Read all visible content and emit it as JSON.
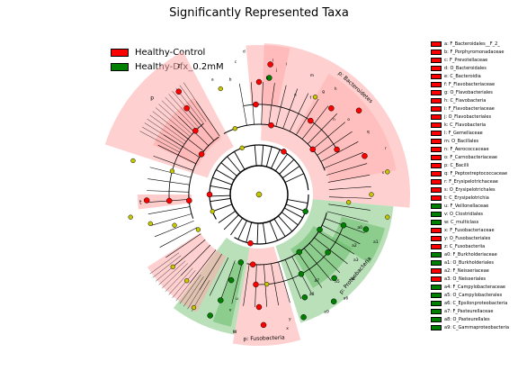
{
  "title": "Significantly Represented Taxa",
  "legend": [
    {
      "label": "Healthy-Control",
      "color": "#ff0000"
    },
    {
      "label": "Healthy-Dfx_0.2mM",
      "color": "#008000"
    }
  ],
  "colors": {
    "control_fill": "#ffaaaa",
    "dfx_fill": "#66bb66",
    "enriched_control_node": "#ff0000",
    "enriched_dfx_node": "#008000",
    "unchanged_node": "#c8c800"
  },
  "taxa": [
    {
      "text": "a: F_Bacteroidales__F_2_",
      "group": "control"
    },
    {
      "text": "b: F_Porphyromonadaceae",
      "group": "control"
    },
    {
      "text": "c: F_Prevotellaceae",
      "group": "control"
    },
    {
      "text": "d: O_Bacteroidales",
      "group": "control"
    },
    {
      "text": "e: C_Bacteroidia",
      "group": "control"
    },
    {
      "text": "f: F_Flavobacteriaceae",
      "group": "control"
    },
    {
      "text": "g: O_Flavobacteriales",
      "group": "control"
    },
    {
      "text": "h: C_Flavobacteria",
      "group": "control"
    },
    {
      "text": "i: F_Flavobacteriaceae",
      "group": "control"
    },
    {
      "text": "j: O_Flavobacteriales",
      "group": "control"
    },
    {
      "text": "k: C_Flavobacteria",
      "group": "control"
    },
    {
      "text": "l: F_Gemellaceae",
      "group": "control"
    },
    {
      "text": "m: O_Bacillales",
      "group": "control"
    },
    {
      "text": "n: F_Aerococcaceae",
      "group": "control"
    },
    {
      "text": "o: F_Carnobacteriaceae",
      "group": "control"
    },
    {
      "text": "p: C_Bacilli",
      "group": "control"
    },
    {
      "text": "q: F_Peptostreptococcaceae",
      "group": "control"
    },
    {
      "text": "r: F_Erysipelotrichaceae",
      "group": "control"
    },
    {
      "text": "s: O_Erysipelotrichales",
      "group": "control"
    },
    {
      "text": "t: C_Erysipelotrichia",
      "group": "control"
    },
    {
      "text": "u: F_Veillonellaceae",
      "group": "dfx"
    },
    {
      "text": "v: O_Clostridiales",
      "group": "dfx"
    },
    {
      "text": "w: C_multiclass",
      "group": "dfx"
    },
    {
      "text": "x: F_Fusobacteriaceae",
      "group": "control"
    },
    {
      "text": "y: O_Fusobacteriales",
      "group": "control"
    },
    {
      "text": "z: C_Fusobacteriia",
      "group": "control"
    },
    {
      "text": "a0: F_Burkholderiaceae",
      "group": "dfx"
    },
    {
      "text": "a1: O_Burkholderiales",
      "group": "dfx"
    },
    {
      "text": "a2: F_Neisseriaceae",
      "group": "control"
    },
    {
      "text": "a3: O_Neisseriales",
      "group": "control"
    },
    {
      "text": "a4: F_Campylobacteraceae",
      "group": "dfx"
    },
    {
      "text": "a5: O_Campylobacterales",
      "group": "dfx"
    },
    {
      "text": "a6: C_Epsilonproteobacteria",
      "group": "dfx"
    },
    {
      "text": "a7: F_Pasteurellaceae",
      "group": "dfx"
    },
    {
      "text": "a8: O_Pasteurellales",
      "group": "dfx"
    },
    {
      "text": "a9: C_Gammaproteobacteria",
      "group": "dfx"
    }
  ],
  "clade_labels": [
    {
      "text": "p: Bacteroidetes"
    },
    {
      "text": "p: Fusobacteria"
    },
    {
      "text": "p: Proteobacteria"
    },
    {
      "text": "w"
    },
    {
      "text": "p"
    },
    {
      "text": "t"
    },
    {
      "text": "z"
    },
    {
      "text": "a"
    },
    {
      "text": "b"
    },
    {
      "text": "c"
    },
    {
      "text": "d"
    },
    {
      "text": "e"
    },
    {
      "text": "f"
    },
    {
      "text": "g"
    },
    {
      "text": "h"
    },
    {
      "text": "i"
    },
    {
      "text": "j"
    },
    {
      "text": "k"
    },
    {
      "text": "l"
    },
    {
      "text": "m"
    },
    {
      "text": "n"
    },
    {
      "text": "o"
    },
    {
      "text": "q"
    },
    {
      "text": "r"
    },
    {
      "text": "s"
    },
    {
      "text": "u"
    },
    {
      "text": "v"
    },
    {
      "text": "x"
    },
    {
      "text": "y"
    },
    {
      "text": "a0"
    },
    {
      "text": "a1"
    },
    {
      "text": "a2"
    },
    {
      "text": "a3"
    },
    {
      "text": "a4"
    },
    {
      "text": "a5"
    },
    {
      "text": "a6"
    },
    {
      "text": "a7"
    },
    {
      "text": "a8"
    },
    {
      "text": "a9"
    },
    {
      "text": "."
    }
  ]
}
